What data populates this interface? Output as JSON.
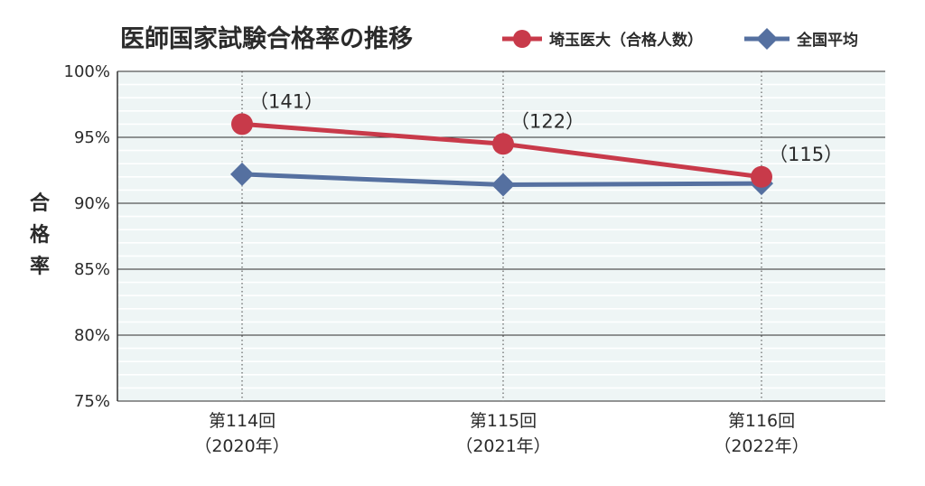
{
  "chart_data": {
    "type": "line",
    "title": "医師国家試験合格率の推移",
    "ylabel": "合格率",
    "xlabel": "",
    "categories": [
      [
        "第114回",
        "（2020年）"
      ],
      [
        "第115回",
        "（2021年）"
      ],
      [
        "第116回",
        "（2022年）"
      ]
    ],
    "ylim": [
      75,
      100
    ],
    "yticks": [
      75,
      80,
      85,
      90,
      95,
      100
    ],
    "ytick_labels": [
      "75%",
      "80%",
      "85%",
      "90%",
      "95%",
      "100%"
    ],
    "grid": true,
    "legend_position": "top-right",
    "series": [
      {
        "name": "埼玉医大（合格人数）",
        "color": "#c83a4a",
        "marker": "circle",
        "values": [
          96.0,
          94.5,
          92.0
        ],
        "labels": [
          "（141）",
          "（122）",
          "（115）"
        ]
      },
      {
        "name": "全国平均",
        "color": "#5570a0",
        "marker": "diamond",
        "values": [
          92.2,
          91.4,
          91.5
        ]
      }
    ]
  }
}
